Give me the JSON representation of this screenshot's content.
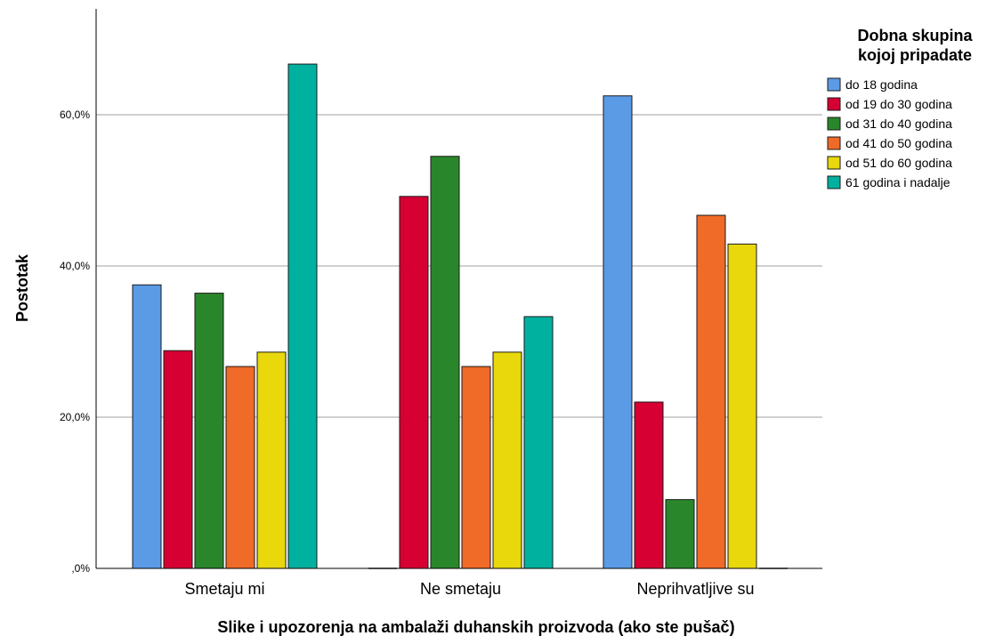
{
  "chart_data": {
    "type": "bar",
    "xlabel": "Slike i upozorenja na ambalaži duhanskih proizvoda (ako ste pušač)",
    "ylabel": "Postotak",
    "categories": [
      "Smetaju mi",
      "Ne smetaju",
      "Neprihvatljive su"
    ],
    "ylim": [
      0,
      74
    ],
    "yticks": [
      0,
      20,
      40,
      60
    ],
    "ytick_labels": [
      ",0%",
      "20,0%",
      "40,0%",
      "60,0%"
    ],
    "grid": true,
    "legend": {
      "title_lines": [
        "Dobna skupina",
        "kojoj pripadate"
      ],
      "placement": "right"
    },
    "series": [
      {
        "name": "do 18 godina",
        "color": "#5b9be6",
        "values": [
          37.5,
          0,
          62.5
        ]
      },
      {
        "name": "od 19 do 30 godina",
        "color": "#d70033",
        "values": [
          28.8,
          49.2,
          22.0
        ]
      },
      {
        "name": "od 31 do 40 godina",
        "color": "#2a862a",
        "values": [
          36.4,
          54.5,
          9.1
        ]
      },
      {
        "name": "od 41 do 50 godina",
        "color": "#f06a28",
        "values": [
          26.7,
          26.7,
          46.7
        ]
      },
      {
        "name": "od 51 do 60 godina",
        "color": "#e8d80c",
        "values": [
          28.6,
          28.6,
          42.9
        ]
      },
      {
        "name": "61 godina i nadalje",
        "color": "#00b1a0",
        "values": [
          66.7,
          33.3,
          0
        ]
      }
    ]
  }
}
